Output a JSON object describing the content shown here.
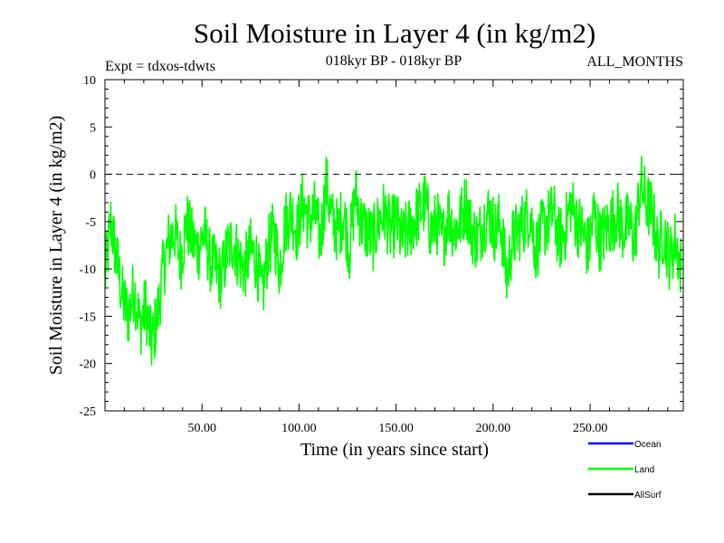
{
  "chart_data": {
    "type": "line",
    "title": "Soil Moisture in Layer 4 (in kg/m2)",
    "subtitle_left": "Expt = tdxos-tdwts",
    "subtitle_center": "018kyr BP - 018kyr BP",
    "subtitle_right": "ALL_MONTHS",
    "xlabel": "Time (in years since start)",
    "ylabel": "Soil Moisture in Layer 4 (in kg/m2)",
    "xlim": [
      0,
      298
    ],
    "ylim": [
      -25,
      10
    ],
    "x_ticks": [
      50,
      100,
      150,
      200,
      250
    ],
    "x_tick_labels": [
      "50.00",
      "100.00",
      "150.00",
      "200.00",
      "250.00"
    ],
    "y_ticks": [
      -25,
      -20,
      -15,
      -10,
      -5,
      0,
      5,
      10
    ],
    "y_tick_labels": [
      "-25",
      "-20",
      "-15",
      "-10",
      "-5",
      "0",
      "5",
      "10"
    ],
    "reference_line": {
      "y": 0,
      "style": "dashed",
      "color": "#000000"
    },
    "grid": false,
    "legend_position": "bottom-right",
    "legend": [
      {
        "label": "Ocean",
        "color": "#0000ff"
      },
      {
        "label": "Land",
        "color": "#00ff00"
      },
      {
        "label": "AllSurf",
        "color": "#000000"
      }
    ],
    "series": [
      {
        "name": "Land",
        "color": "#00ff00",
        "x": [
          0,
          3,
          6,
          9,
          12,
          15,
          18,
          21,
          24,
          27,
          30,
          33,
          36,
          39,
          42,
          45,
          48,
          51,
          54,
          57,
          60,
          63,
          66,
          69,
          72,
          75,
          78,
          81,
          84,
          87,
          90,
          93,
          96,
          99,
          102,
          105,
          108,
          111,
          114,
          117,
          120,
          123,
          126,
          129,
          132,
          135,
          138,
          141,
          144,
          147,
          150,
          153,
          156,
          159,
          162,
          165,
          168,
          171,
          174,
          177,
          180,
          183,
          186,
          189,
          192,
          195,
          198,
          201,
          204,
          207,
          210,
          213,
          216,
          219,
          222,
          225,
          228,
          231,
          234,
          237,
          240,
          243,
          246,
          249,
          252,
          255,
          258,
          261,
          264,
          267,
          270,
          273,
          276,
          279,
          282,
          285,
          288,
          291,
          294,
          297
        ],
        "y": [
          -11,
          -5,
          -9,
          -13,
          -15,
          -12,
          -16,
          -14,
          -18,
          -15,
          -10,
          -7,
          -6,
          -9,
          -5,
          -7,
          -8,
          -6,
          -9,
          -10,
          -11,
          -8,
          -7,
          -9,
          -10,
          -8,
          -9,
          -13,
          -8,
          -6,
          -10,
          -5,
          -4,
          -6,
          -3,
          -5,
          -4,
          -7,
          -1,
          -5,
          -6,
          -4,
          -8,
          -2,
          -5,
          -6,
          -7,
          -5,
          -4,
          -6,
          -5,
          -7,
          -6,
          -5,
          -4,
          -3,
          -6,
          -5,
          -7,
          -4,
          -6,
          -5,
          -3,
          -6,
          -7,
          -5,
          -4,
          -6,
          -5,
          -11,
          -7,
          -6,
          -5,
          -4,
          -8,
          -6,
          -5,
          -4,
          -7,
          -6,
          -3,
          -5,
          -6,
          -8,
          -4,
          -7,
          -6,
          -5,
          -4,
          -6,
          -5,
          -7,
          -1,
          -3,
          -4,
          -8,
          -6,
          -9,
          -7,
          -10
        ]
      }
    ]
  }
}
